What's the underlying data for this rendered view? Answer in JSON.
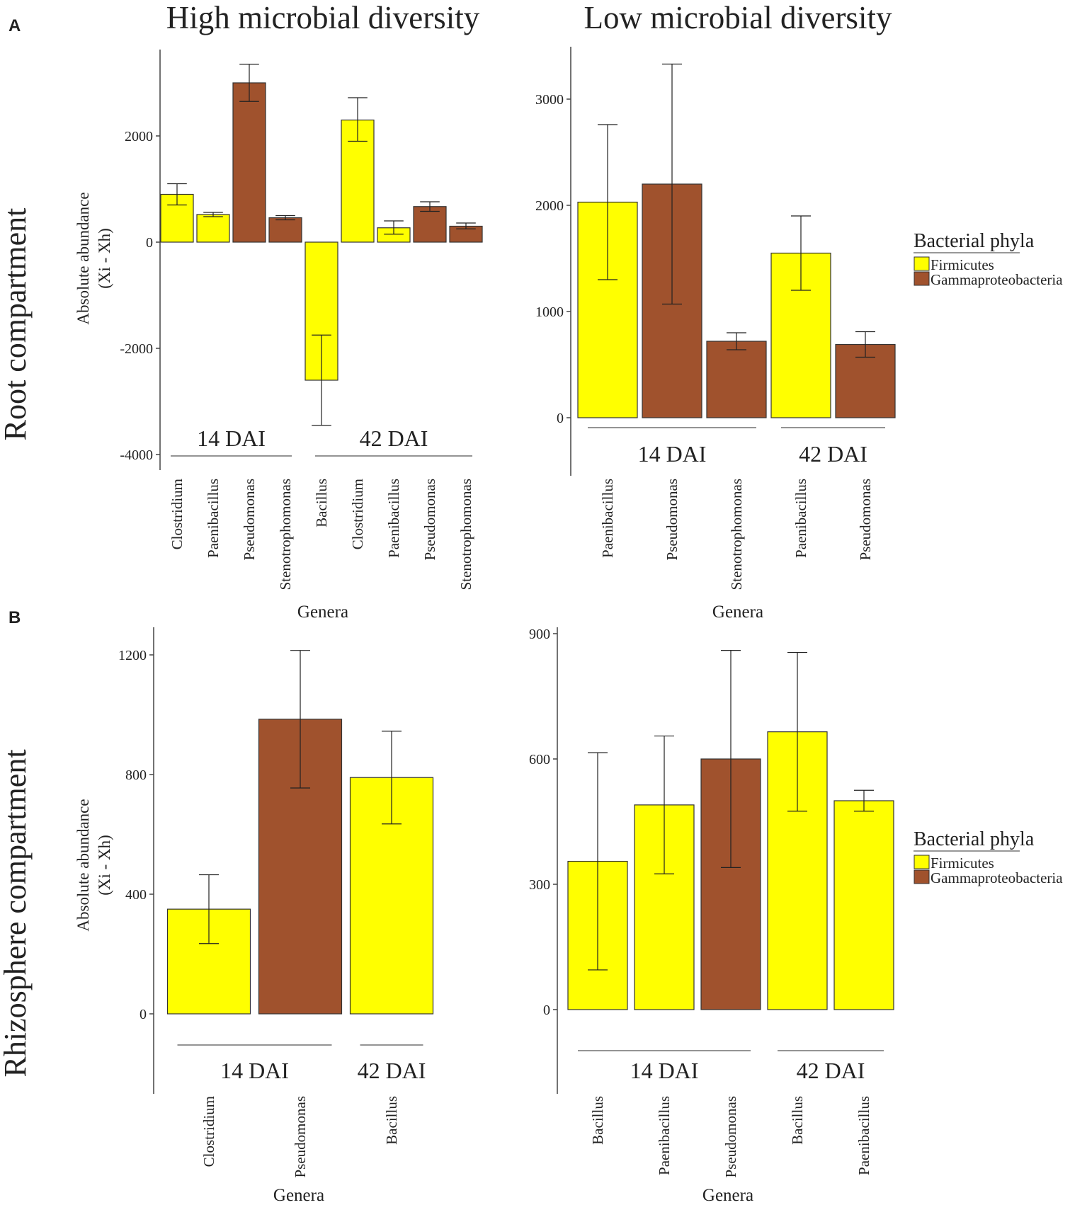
{
  "colors": {
    "Firmicutes": "#ffff00",
    "Gammaproteobacteria": "#a0522d",
    "axis": "#444444",
    "text": "#222222"
  },
  "figure": {
    "panel_labels": [
      "A",
      "B"
    ],
    "column_titles": [
      "High microbial diversity",
      "Low microbial diversity"
    ],
    "row_labels": [
      "Root compartment",
      "Rhizosphere compartment"
    ],
    "legend": {
      "title": "Bacterial phyla",
      "items": [
        "Firmicutes",
        "Gammaproteobacteria"
      ]
    }
  },
  "chart_data": [
    {
      "id": "root-high",
      "type": "bar",
      "title": "High microbial diversity",
      "ylabel_line1": "Absolute abundance",
      "ylabel_line2": "(Xi - Xh)",
      "xlabel": "Genera",
      "ylim": [
        -4000,
        3400
      ],
      "yticks": [
        2000,
        0,
        -2000,
        -4000
      ],
      "ytick_labels": [
        "2000",
        "0",
        "-2000",
        "-4000"
      ],
      "groups": [
        {
          "label": "14 DAI",
          "start": 0,
          "end": 3
        },
        {
          "label": "42 DAI",
          "start": 4,
          "end": 8
        }
      ],
      "bars": [
        {
          "genus": "Clostridium",
          "phylum": "Firmicutes",
          "value": 900,
          "err_low": 700,
          "err_high": 1100
        },
        {
          "genus": "Paenibacillus",
          "phylum": "Firmicutes",
          "value": 520,
          "err_low": 480,
          "err_high": 560
        },
        {
          "genus": "Pseudomonas",
          "phylum": "Gammaproteobacteria",
          "value": 3000,
          "err_low": 2650,
          "err_high": 3350
        },
        {
          "genus": "Stenotrophomonas",
          "phylum": "Gammaproteobacteria",
          "value": 460,
          "err_low": 420,
          "err_high": 500
        },
        {
          "genus": "Bacillus",
          "phylum": "Firmicutes",
          "value": -2600,
          "err_low": -3450,
          "err_high": -1750
        },
        {
          "genus": "Clostridium",
          "phylum": "Firmicutes",
          "value": 2300,
          "err_low": 1900,
          "err_high": 2720
        },
        {
          "genus": "Paenibacillus",
          "phylum": "Firmicutes",
          "value": 270,
          "err_low": 150,
          "err_high": 400
        },
        {
          "genus": "Pseudomonas",
          "phylum": "Gammaproteobacteria",
          "value": 670,
          "err_low": 580,
          "err_high": 760
        },
        {
          "genus": "Stenotrophomonas",
          "phylum": "Gammaproteobacteria",
          "value": 300,
          "err_low": 250,
          "err_high": 360
        }
      ]
    },
    {
      "id": "root-low",
      "type": "bar",
      "title": "Low microbial diversity",
      "xlabel": "Genera",
      "ylim": [
        -500,
        3400
      ],
      "yticks": [
        3000,
        2000,
        1000,
        0
      ],
      "ytick_labels": [
        "3000",
        "2000",
        "1000",
        "0"
      ],
      "groups": [
        {
          "label": "14 DAI",
          "start": 0,
          "end": 2
        },
        {
          "label": "42 DAI",
          "start": 3,
          "end": 4
        }
      ],
      "bars": [
        {
          "genus": "Paenibacillus",
          "phylum": "Firmicutes",
          "value": 2030,
          "err_low": 1300,
          "err_high": 2760
        },
        {
          "genus": "Pseudomonas",
          "phylum": "Gammaproteobacteria",
          "value": 2200,
          "err_low": 1070,
          "err_high": 3330
        },
        {
          "genus": "Stenotrophomonas",
          "phylum": "Gammaproteobacteria",
          "value": 720,
          "err_low": 640,
          "err_high": 800
        },
        {
          "genus": "Paenibacillus",
          "phylum": "Firmicutes",
          "value": 1550,
          "err_low": 1200,
          "err_high": 1900
        },
        {
          "genus": "Pseudomonas",
          "phylum": "Gammaproteobacteria",
          "value": 690,
          "err_low": 570,
          "err_high": 810
        }
      ]
    },
    {
      "id": "rhizo-high",
      "type": "bar",
      "ylabel_line1": "Absolute abundance",
      "ylabel_line2": "(Xi - Xh)",
      "xlabel": "Genera",
      "ylim": [
        -270,
        1220
      ],
      "yticks": [
        1200,
        800,
        400,
        0
      ],
      "ytick_labels": [
        "1200",
        "800",
        "400",
        "0"
      ],
      "groups": [
        {
          "label": "14 DAI",
          "start": 0,
          "end": 1
        },
        {
          "label": "42 DAI",
          "start": 2,
          "end": 2
        }
      ],
      "bars": [
        {
          "genus": "Clostridium",
          "phylum": "Firmicutes",
          "value": 350,
          "err_low": 235,
          "err_high": 465
        },
        {
          "genus": "Pseudomonas",
          "phylum": "Gammaproteobacteria",
          "value": 985,
          "err_low": 755,
          "err_high": 1215
        },
        {
          "genus": "Bacillus",
          "phylum": "Firmicutes",
          "value": 790,
          "err_low": 635,
          "err_high": 945
        }
      ]
    },
    {
      "id": "rhizo-low",
      "type": "bar",
      "xlabel": "Genera",
      "ylim": [
        -200,
        900
      ],
      "yticks": [
        900,
        600,
        300,
        0
      ],
      "ytick_labels": [
        "900",
        "600",
        "300",
        "0"
      ],
      "groups": [
        {
          "label": "14 DAI",
          "start": 0,
          "end": 2
        },
        {
          "label": "42 DAI",
          "start": 3,
          "end": 4
        }
      ],
      "bars": [
        {
          "genus": "Bacillus",
          "phylum": "Firmicutes",
          "value": 355,
          "err_low": 95,
          "err_high": 615
        },
        {
          "genus": "Paenibacillus",
          "phylum": "Firmicutes",
          "value": 490,
          "err_low": 325,
          "err_high": 655
        },
        {
          "genus": "Pseudomonas",
          "phylum": "Gammaproteobacteria",
          "value": 600,
          "err_low": 340,
          "err_high": 860
        },
        {
          "genus": "Bacillus",
          "phylum": "Firmicutes",
          "value": 665,
          "err_low": 475,
          "err_high": 855
        },
        {
          "genus": "Paenibacillus",
          "phylum": "Firmicutes",
          "value": 500,
          "err_low": 475,
          "err_high": 525
        }
      ]
    }
  ]
}
